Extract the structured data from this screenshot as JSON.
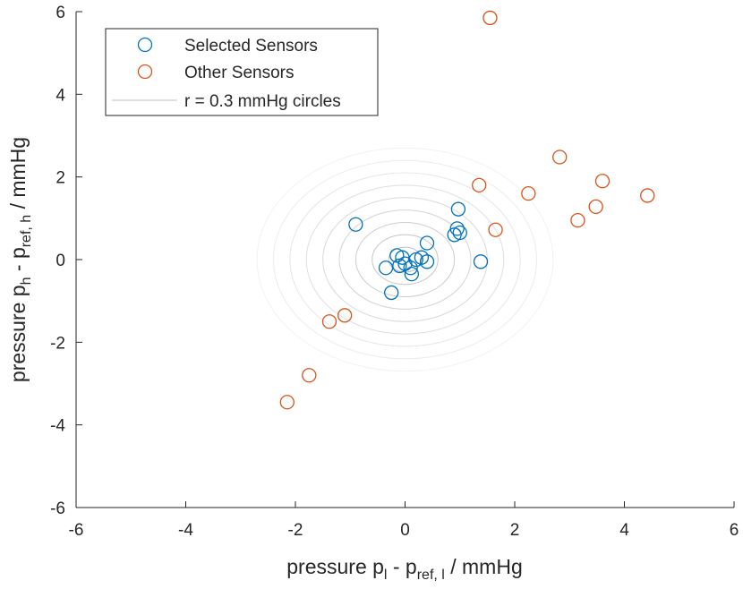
{
  "chart_data": {
    "type": "scatter",
    "xlabel": {
      "main": "pressure p",
      "sub1": "l",
      "mid": " - p",
      "sub2": "ref, l",
      "tail": " / mmHg"
    },
    "ylabel": {
      "main": "pressure p",
      "sub1": "h",
      "mid": " - p",
      "sub2": "ref, h",
      "tail": " / mmHg"
    },
    "xlim": [
      -6,
      6
    ],
    "ylim": [
      -6,
      6
    ],
    "xticks": [
      -6,
      -4,
      -2,
      0,
      2,
      4,
      6
    ],
    "yticks": [
      -6,
      -4,
      -2,
      0,
      2,
      4,
      6
    ],
    "grid": false,
    "legend_position": "top-left",
    "circles": {
      "name": "r = 0.3 mmHg circles",
      "center": [
        0,
        0
      ],
      "step": 0.3,
      "count": 9,
      "color": "#c0c0c0"
    },
    "series": [
      {
        "name": "Selected Sensors",
        "color": "#0072BD",
        "points": [
          [
            -0.9,
            0.85
          ],
          [
            -0.15,
            0.1
          ],
          [
            -0.05,
            0.05
          ],
          [
            -0.1,
            -0.15
          ],
          [
            0.0,
            -0.1
          ],
          [
            -0.35,
            -0.2
          ],
          [
            0.1,
            -0.2
          ],
          [
            0.12,
            -0.35
          ],
          [
            0.2,
            0.0
          ],
          [
            0.3,
            0.05
          ],
          [
            0.4,
            -0.05
          ],
          [
            0.4,
            0.4
          ],
          [
            -0.25,
            -0.8
          ],
          [
            0.9,
            0.6
          ],
          [
            0.95,
            0.75
          ],
          [
            1.0,
            0.65
          ],
          [
            0.97,
            1.22
          ],
          [
            1.38,
            -0.05
          ]
        ]
      },
      {
        "name": "Other Sensors",
        "color": "#D95319",
        "points": [
          [
            1.55,
            5.85
          ],
          [
            2.82,
            2.48
          ],
          [
            3.6,
            1.9
          ],
          [
            1.35,
            1.8
          ],
          [
            2.25,
            1.6
          ],
          [
            4.42,
            1.55
          ],
          [
            3.48,
            1.28
          ],
          [
            3.15,
            0.95
          ],
          [
            1.65,
            0.72
          ],
          [
            -1.1,
            -1.35
          ],
          [
            -1.38,
            -1.5
          ],
          [
            -1.75,
            -2.8
          ],
          [
            -2.15,
            -3.45
          ]
        ]
      }
    ]
  }
}
